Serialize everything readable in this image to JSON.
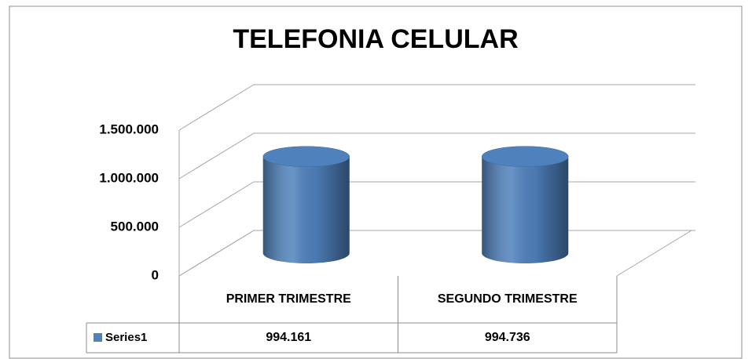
{
  "chart_data": {
    "type": "bar",
    "title": "TELEFONIA CELULAR",
    "categories": [
      "PRIMER TRIMESTRE",
      "SEGUNDO TRIMESTRE"
    ],
    "series": [
      {
        "name": "Series1",
        "color": "#4f81bd",
        "values": [
          994161,
          994736
        ],
        "value_labels": [
          "994.161",
          "994.736"
        ]
      }
    ],
    "ylim": [
      0,
      1500000
    ],
    "yticks": [
      0,
      {
        "value": 500000,
        "label": "500.000"
      },
      {
        "value": 1000000,
        "label": "1.000.000"
      },
      {
        "value": 1500000,
        "label": "1.500.000"
      }
    ],
    "grid": true
  }
}
